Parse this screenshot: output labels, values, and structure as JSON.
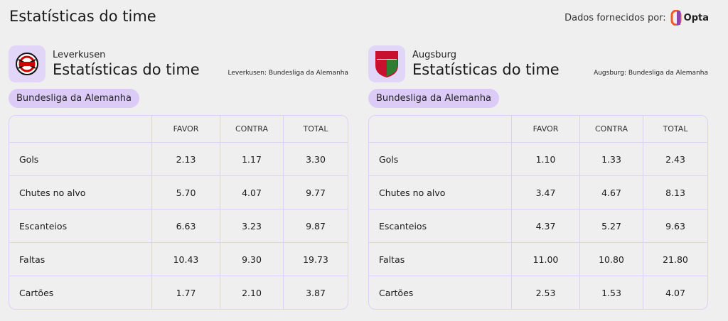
{
  "header": {
    "title": "Estatísticas do time",
    "provider_label": "Dados fornecidos por:",
    "provider_name": "Opta"
  },
  "panels": [
    {
      "team": "Leverkusen",
      "title": "Estatísticas do time",
      "source": "Leverkusen: Bundesliga da Alemanha",
      "competition": "Bundesliga da Alemanha",
      "table": {
        "columns": [
          "FAVOR",
          "CONTRA",
          "TOTAL"
        ],
        "rows": [
          [
            "Gols",
            "2.13",
            "1.17",
            "3.30"
          ],
          [
            "Chutes no alvo",
            "5.70",
            "4.07",
            "9.77"
          ],
          [
            "Escanteios",
            "6.63",
            "3.23",
            "9.87"
          ],
          [
            "Faltas",
            "10.43",
            "9.30",
            "19.73"
          ],
          [
            "Cartões",
            "1.77",
            "2.10",
            "3.87"
          ]
        ]
      }
    },
    {
      "team": "Augsburg",
      "title": "Estatísticas do time",
      "source": "Augsburg: Bundesliga da Alemanha",
      "competition": "Bundesliga da Alemanha",
      "table": {
        "columns": [
          "FAVOR",
          "CONTRA",
          "TOTAL"
        ],
        "rows": [
          [
            "Gols",
            "1.10",
            "1.33",
            "2.43"
          ],
          [
            "Chutes no alvo",
            "3.47",
            "4.67",
            "8.13"
          ],
          [
            "Escanteios",
            "4.37",
            "5.27",
            "9.63"
          ],
          [
            "Faltas",
            "11.00",
            "10.80",
            "21.80"
          ],
          [
            "Cartões",
            "2.53",
            "1.53",
            "4.07"
          ]
        ]
      }
    }
  ]
}
